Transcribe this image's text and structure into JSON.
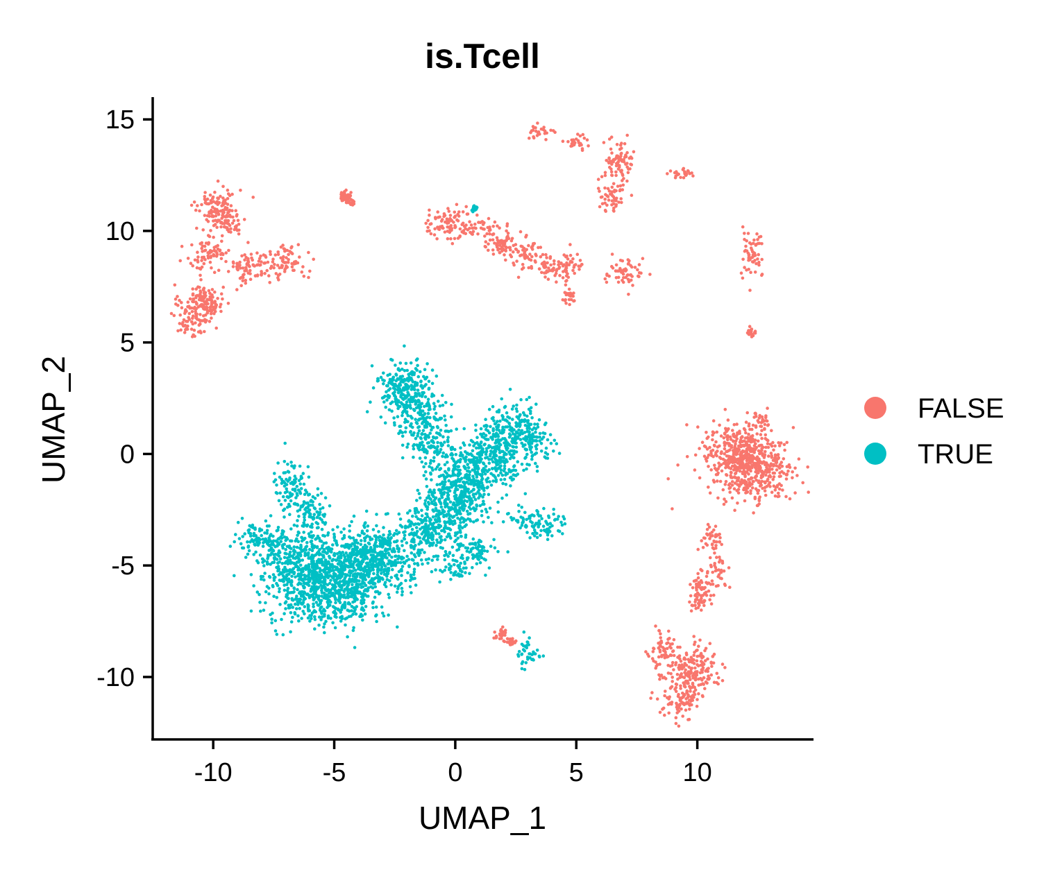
{
  "chart_data": {
    "type": "scatter",
    "title": "is.Tcell",
    "xlabel": "UMAP_1",
    "ylabel": "UMAP_2",
    "xlim": [
      -12.5,
      14.8
    ],
    "ylim": [
      -12.8,
      16
    ],
    "x_ticks": [
      -10,
      -5,
      0,
      5,
      10
    ],
    "y_ticks": [
      -10,
      -5,
      0,
      5,
      10,
      15
    ],
    "x_tick_labels": [
      "-10",
      "-5",
      "0",
      "5",
      "10"
    ],
    "y_tick_labels": [
      "-10",
      "-5",
      "0",
      "5",
      "10",
      "15"
    ],
    "grid": false,
    "legend_position": "right",
    "series": [
      {
        "name": "FALSE",
        "color": "#F8766D",
        "clusters": [
          {
            "x": [
              -10.5,
              -9.8,
              -8.5,
              -7.0,
              -10.2,
              -9.5
            ],
            "y": [
              6.8,
              11.2,
              8.4,
              8.6,
              9.0,
              10.5
            ],
            "spread": [
              0.45,
              0.4
            ]
          },
          {
            "x": [
              -10.9,
              -10.3
            ],
            "y": [
              6.0,
              6.8
            ],
            "spread": [
              0.35,
              0.4
            ]
          },
          {
            "x": [
              -4.6,
              -4.4
            ],
            "y": [
              11.6,
              11.4
            ],
            "spread": [
              0.1,
              0.12
            ]
          },
          {
            "x": [
              -0.5,
              0.5,
              1.8,
              3.0,
              4.6,
              7.0
            ],
            "y": [
              10.3,
              10.3,
              9.6,
              8.9,
              8.4,
              8.1
            ],
            "spread": [
              0.4,
              0.35
            ]
          },
          {
            "x": [
              2.0,
              3.8,
              4.7
            ],
            "y": [
              9.3,
              8.3,
              7.0
            ],
            "spread": [
              0.18,
              0.2
            ]
          },
          {
            "x": [
              3.6,
              5.0,
              6.8,
              9.3
            ],
            "y": [
              14.5,
              14.0,
              13.2,
              12.6
            ],
            "spread": [
              0.25,
              0.15
            ]
          },
          {
            "x": [
              6.8,
              6.5
            ],
            "y": [
              13.2,
              11.6
            ],
            "spread": [
              0.3,
              0.45
            ]
          },
          {
            "x": [
              12.3
            ],
            "y": [
              9.0
            ],
            "spread": [
              0.25,
              0.55
            ]
          },
          {
            "x": [
              12.2
            ],
            "y": [
              5.4
            ],
            "spread": [
              0.1,
              0.1
            ]
          },
          {
            "x": [
              11.9,
              11.6,
              12.6
            ],
            "y": [
              -0.5,
              0.2,
              -0.9
            ],
            "spread": [
              0.75,
              0.7
            ]
          },
          {
            "x": [
              12.6
            ],
            "y": [
              1.4
            ],
            "spread": [
              0.3,
              0.25
            ]
          },
          {
            "x": [
              10.6,
              10.8,
              10.2,
              10.0
            ],
            "y": [
              -3.7,
              -5.2,
              -6.0,
              -6.5
            ],
            "spread": [
              0.25,
              0.35
            ]
          },
          {
            "x": [
              1.9,
              2.3
            ],
            "y": [
              -8.1,
              -8.4
            ],
            "spread": [
              0.12,
              0.12
            ]
          },
          {
            "x": [
              8.8,
              9.6,
              10.1,
              9.4
            ],
            "y": [
              -9.0,
              -10.1,
              -9.4,
              -11.0
            ],
            "spread": [
              0.4,
              0.5
            ]
          }
        ]
      },
      {
        "name": "TRUE",
        "color": "#00BFC4",
        "clusters": [
          {
            "x": [
              -5.0,
              -4.0,
              -6.5,
              -3.0,
              -6.0,
              -4.5
            ],
            "y": [
              -5.2,
              -4.8,
              -4.8,
              -4.5,
              -6.2,
              -6.3
            ],
            "spread": [
              0.9,
              0.7
            ]
          },
          {
            "x": [
              -8.3,
              -7.3
            ],
            "y": [
              -3.7,
              -4.2
            ],
            "spread": [
              0.45,
              0.35
            ]
          },
          {
            "x": [
              -6.8,
              -6.0
            ],
            "y": [
              -1.4,
              -2.5
            ],
            "spread": [
              0.35,
              0.6
            ]
          },
          {
            "x": [
              -1.8,
              -1.5,
              -0.8,
              -2.2
            ],
            "y": [
              2.6,
              1.5,
              0.3,
              3.2
            ],
            "spread": [
              0.55,
              0.55
            ]
          },
          {
            "x": [
              0.0,
              -0.6,
              0.9,
              -1.2,
              0.4
            ],
            "y": [
              -1.5,
              -2.8,
              -0.5,
              -3.6,
              -2.0
            ],
            "spread": [
              0.6,
              0.6
            ]
          },
          {
            "x": [
              2.5,
              3.0,
              1.6,
              2.0
            ],
            "y": [
              1.3,
              0.5,
              0.7,
              -0.4
            ],
            "spread": [
              0.5,
              0.5
            ]
          },
          {
            "x": [
              3.0,
              3.8
            ],
            "y": [
              -3.0,
              -3.2
            ],
            "spread": [
              0.4,
              0.3
            ]
          },
          {
            "x": [
              0.0,
              0.9
            ],
            "y": [
              -5.0,
              -4.4
            ],
            "spread": [
              0.35,
              0.4
            ]
          },
          {
            "x": [
              2.9
            ],
            "y": [
              -8.9
            ],
            "spread": [
              0.3,
              0.3
            ]
          },
          {
            "x": [
              0.8
            ],
            "y": [
              11.0
            ],
            "spread": [
              0.05,
              0.05
            ]
          }
        ]
      }
    ]
  }
}
